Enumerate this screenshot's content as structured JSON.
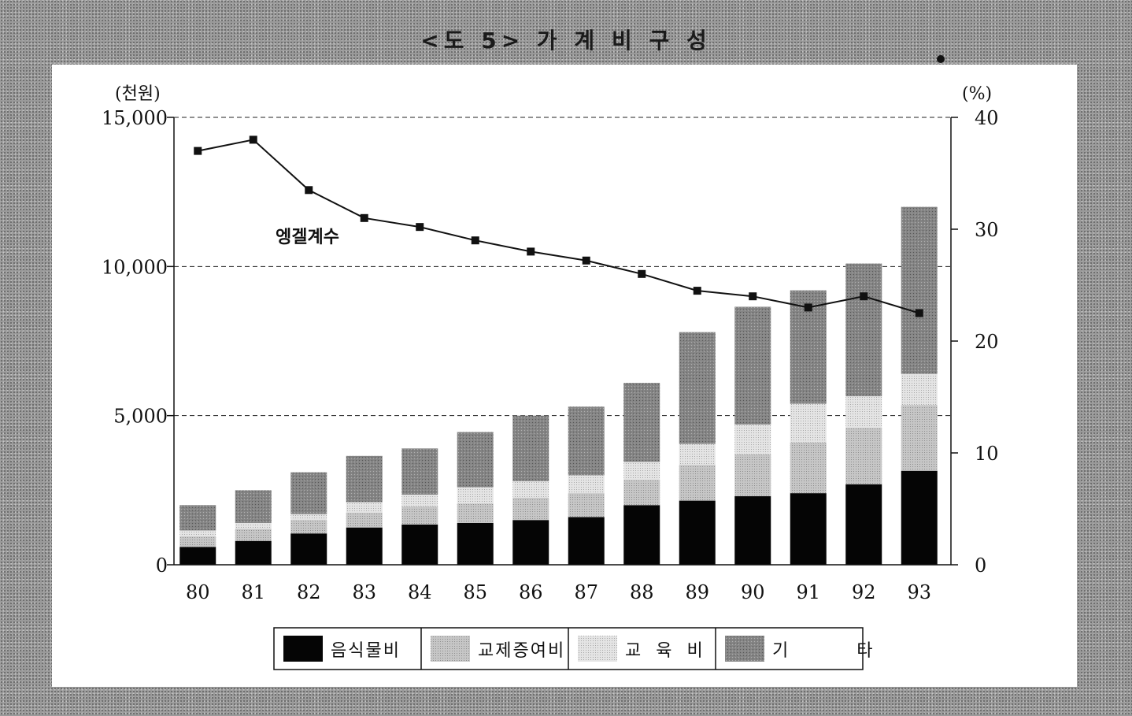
{
  "title": "<도 5> 가 계 비 구 성",
  "chart_data": {
    "type": "bar",
    "stacked": true,
    "categories": [
      "80",
      "81",
      "82",
      "83",
      "84",
      "85",
      "86",
      "87",
      "88",
      "89",
      "90",
      "91",
      "92",
      "93"
    ],
    "series": [
      {
        "name": "음식물비",
        "color": "#050505",
        "values": [
          600,
          800,
          1050,
          1250,
          1350,
          1400,
          1500,
          1600,
          2000,
          2150,
          2300,
          2400,
          2700,
          3150
        ]
      },
      {
        "name": "교제증여비",
        "color": "#b8b8b8",
        "values": [
          350,
          400,
          450,
          500,
          600,
          650,
          750,
          800,
          850,
          1200,
          1400,
          1700,
          1900,
          2200
        ]
      },
      {
        "name": "교 육 비",
        "color": "#d4d4d4",
        "values": [
          200,
          200,
          200,
          350,
          400,
          550,
          550,
          600,
          600,
          700,
          1000,
          1300,
          1050,
          1050
        ]
      },
      {
        "name": "기 타",
        "color": "#8a8a8a",
        "values": [
          850,
          1100,
          1400,
          1550,
          1550,
          1850,
          2200,
          2300,
          2650,
          3750,
          3950,
          3800,
          4450,
          5600
        ]
      }
    ],
    "line": {
      "name": "엥겔계수",
      "axis": "right",
      "values": [
        37.0,
        38.0,
        33.5,
        31.0,
        30.2,
        29.0,
        28.0,
        27.2,
        26.0,
        24.5,
        24.0,
        23.0,
        24.0,
        22.5
      ]
    },
    "ylabel_left": "(천원)",
    "ylabel_right": "(%)",
    "ylim_left": [
      0,
      15000
    ],
    "ylim_right": [
      0,
      40
    ],
    "yticks_left": [
      "0",
      "5,000",
      "10,000",
      "15,000"
    ],
    "yticks_right": [
      "0",
      "10",
      "20",
      "30",
      "40"
    ],
    "grid": "dashed at 5,000 / 10,000 / 15,000",
    "legend_position": "bottom"
  }
}
